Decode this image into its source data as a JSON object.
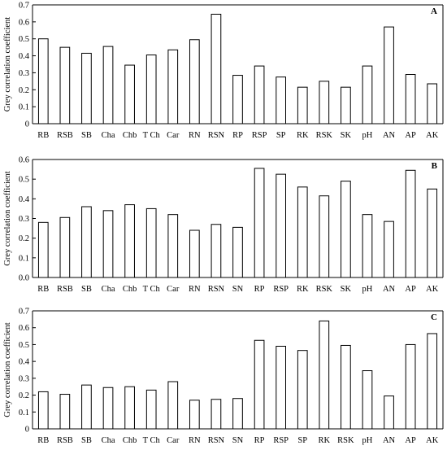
{
  "chart_data": [
    {
      "type": "bar",
      "panel_label": "A",
      "ylabel": "Grey correlation coefficient",
      "xlabel": "",
      "ylim": [
        0,
        0.7
      ],
      "yticks": [
        "0",
        "0.1",
        "0.2",
        "0.3",
        "0.4",
        "0.5",
        "0.6",
        "0.7"
      ],
      "categories": [
        "RB",
        "RSB",
        "SB",
        "Cha",
        "Chb",
        "T Ch",
        "Car",
        "RN",
        "RSN",
        "RP",
        "RSP",
        "SP",
        "RK",
        "RSK",
        "SK",
        "pH",
        "AN",
        "AP",
        "AK"
      ],
      "values": [
        0.5,
        0.45,
        0.415,
        0.455,
        0.345,
        0.405,
        0.435,
        0.495,
        0.645,
        0.285,
        0.34,
        0.275,
        0.215,
        0.25,
        0.215,
        0.34,
        0.57,
        0.29,
        0.235
      ],
      "grid": false
    },
    {
      "type": "bar",
      "panel_label": "B",
      "ylabel": "Grey correlation coefficient",
      "xlabel": "",
      "ylim": [
        0,
        0.6
      ],
      "yticks": [
        "0.0",
        "0.1",
        "0.2",
        "0.3",
        "0.4",
        "0.5",
        "0.6"
      ],
      "categories": [
        "RB",
        "RSB",
        "SB",
        "Cha",
        "Chb",
        "T Ch",
        "Car",
        "RN",
        "RSN",
        "SN",
        "RP",
        "RSP",
        "RK",
        "RSK",
        "SK",
        "pH",
        "AN",
        "AP",
        "AK"
      ],
      "values": [
        0.28,
        0.305,
        0.36,
        0.34,
        0.37,
        0.35,
        0.32,
        0.24,
        0.27,
        0.255,
        0.555,
        0.525,
        0.46,
        0.415,
        0.49,
        0.32,
        0.285,
        0.545,
        0.45
      ],
      "grid": false
    },
    {
      "type": "bar",
      "panel_label": "C",
      "ylabel": "Grey correlation coefficient",
      "xlabel": "",
      "ylim": [
        0,
        0.7
      ],
      "yticks": [
        "0",
        "0.1",
        "0.2",
        "0.3",
        "0.4",
        "0.5",
        "0.6",
        "0.7"
      ],
      "categories": [
        "RB",
        "RSB",
        "SB",
        "Cha",
        "Chb",
        "T Ch",
        "Car",
        "RN",
        "RSN",
        "SN",
        "RP",
        "RSP",
        "SP",
        "RK",
        "RSK",
        "pH",
        "AN",
        "AP",
        "AK"
      ],
      "values": [
        0.22,
        0.205,
        0.26,
        0.245,
        0.25,
        0.23,
        0.28,
        0.17,
        0.175,
        0.18,
        0.525,
        0.49,
        0.465,
        0.64,
        0.495,
        0.345,
        0.195,
        0.5,
        0.565
      ],
      "grid": false
    }
  ]
}
